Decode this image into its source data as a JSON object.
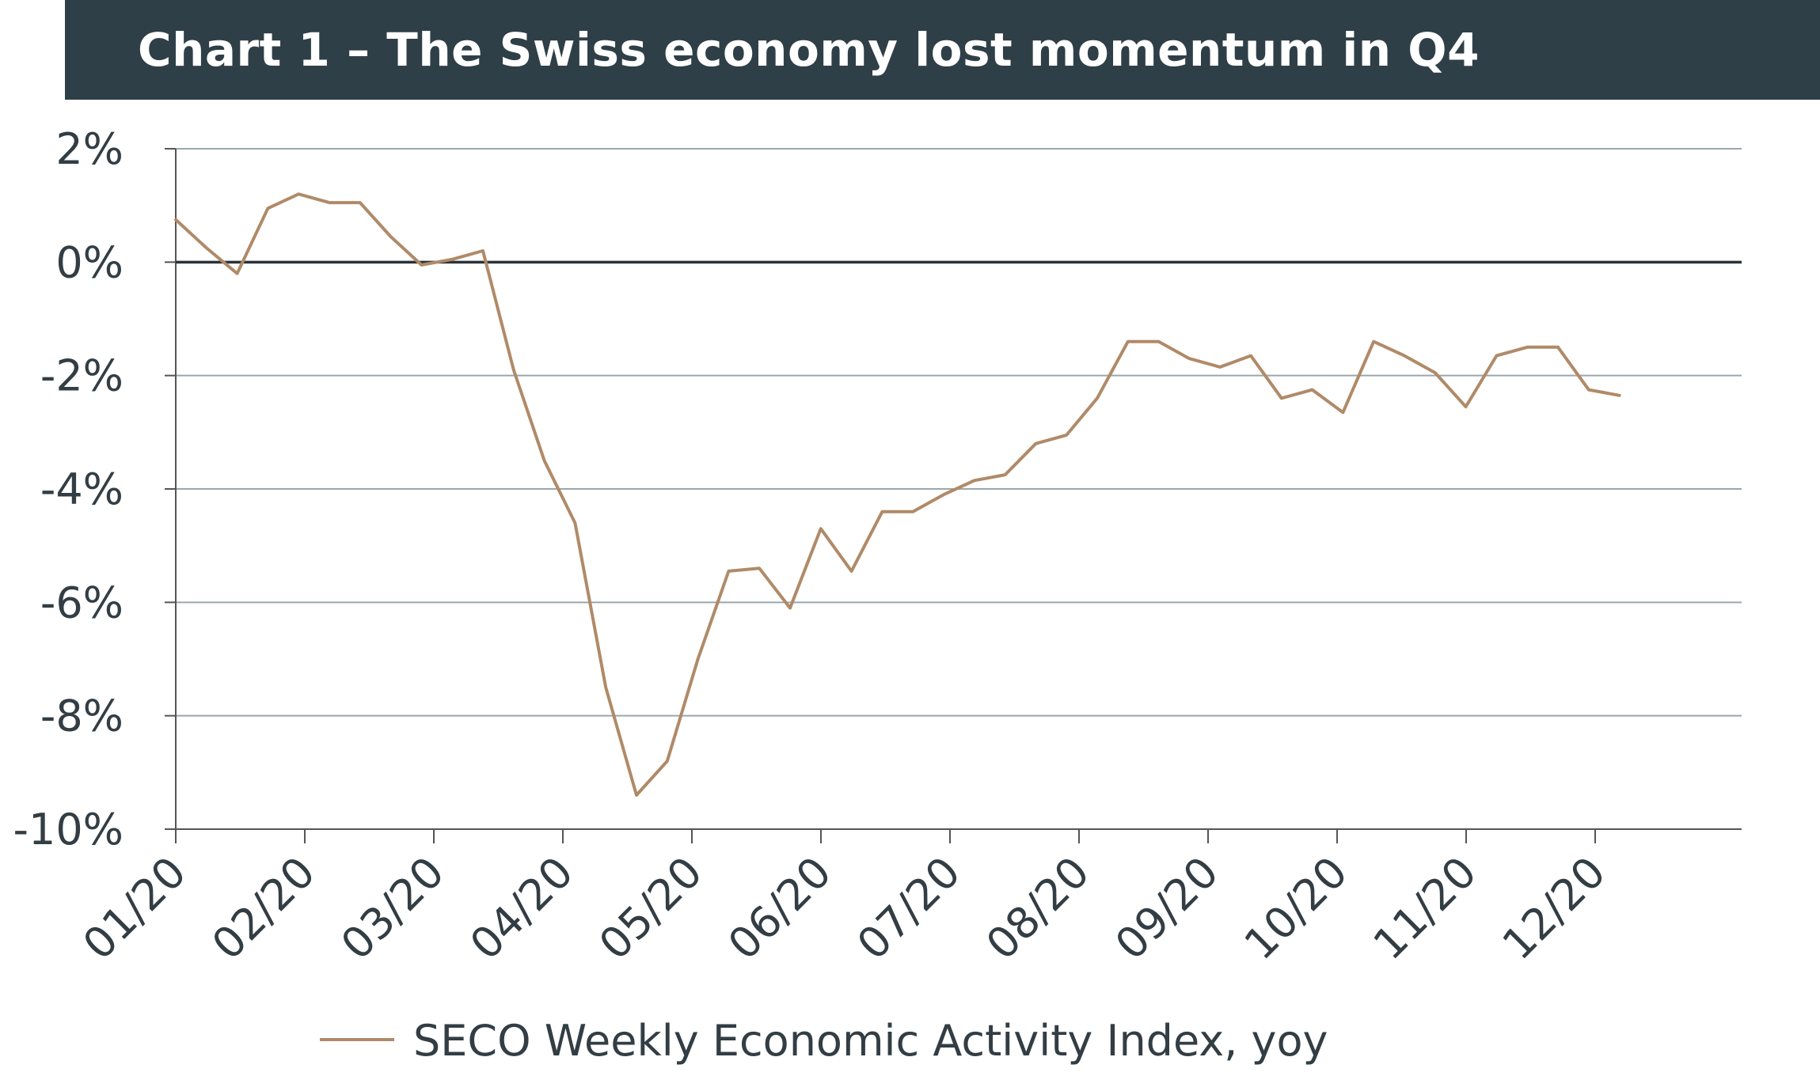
{
  "title": "Chart 1 – The Swiss economy lost momentum in Q4",
  "chart_data": {
    "type": "line",
    "title": "Chart 1 – The Swiss economy lost momentum in Q4",
    "xlabel": "",
    "ylabel": "",
    "x_tick_labels": [
      "01/20",
      "02/20",
      "03/20",
      "04/20",
      "05/20",
      "06/20",
      "07/20",
      "08/20",
      "09/20",
      "10/20",
      "11/20",
      "12/20"
    ],
    "y_tick_labels": [
      "2%",
      "0%",
      "-2%",
      "-4%",
      "-6%",
      "-8%",
      "-10%"
    ],
    "y_tick_values": [
      2,
      0,
      -2,
      -4,
      -6,
      -8,
      -10
    ],
    "ylim": [
      -10,
      2
    ],
    "xlim_weeks": [
      0,
      51
    ],
    "grid": "horizontal",
    "legend_position": "bottom",
    "colors": {
      "series": "#b08a68",
      "zero_line": "#2b3338",
      "grid": "#9aa7ad",
      "axis": "#555555"
    },
    "series": [
      {
        "name": "SECO Weekly Economic Activity Index, yoy",
        "week": [
          0,
          1,
          2,
          3,
          4,
          5,
          6,
          7,
          8,
          9,
          10,
          11,
          12,
          13,
          14,
          15,
          16,
          17,
          18,
          19,
          20,
          21,
          22,
          23,
          24,
          25,
          26,
          27,
          28,
          29,
          30,
          31,
          32,
          33,
          34,
          35,
          36,
          37,
          38,
          39,
          40,
          41,
          42,
          43,
          44,
          45,
          46,
          47
        ],
        "values": [
          0.75,
          0.25,
          -0.2,
          0.95,
          1.2,
          1.05,
          1.05,
          0.45,
          -0.05,
          0.05,
          0.2,
          -1.9,
          -3.5,
          -4.6,
          -7.5,
          -9.4,
          -8.8,
          -7.0,
          -5.45,
          -5.4,
          -6.1,
          -4.7,
          -5.45,
          -4.4,
          -4.4,
          -4.1,
          -3.85,
          -3.75,
          -3.2,
          -3.05,
          -2.4,
          -1.4,
          -1.4,
          -1.7,
          -1.85,
          -1.65,
          -2.4,
          -2.25,
          -2.65,
          -1.4,
          -1.65,
          -1.95,
          -2.55,
          -1.65,
          -1.5,
          -1.5,
          -2.25,
          -2.35
        ]
      }
    ]
  }
}
